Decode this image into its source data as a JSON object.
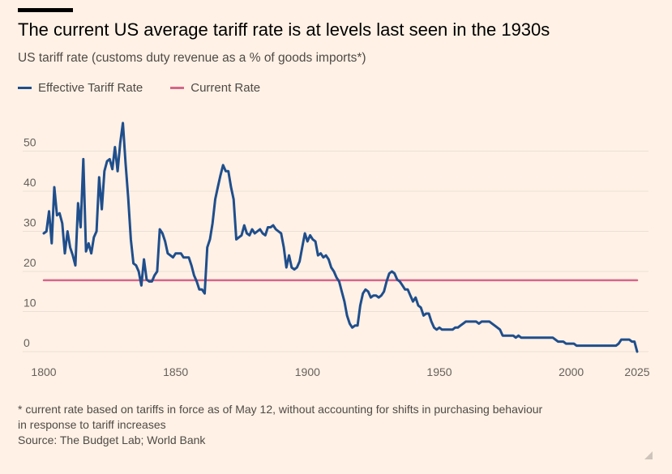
{
  "title": "The current US average tariff rate is at levels last seen in the 1930s",
  "subtitle": "US tariff rate (customs duty revenue as a % of goods imports*)",
  "legend": [
    {
      "label": "Effective Tariff Rate",
      "color": "#1f4e8c"
    },
    {
      "label": "Current Rate",
      "color": "#d6668a"
    }
  ],
  "footnote": {
    "line1": "* current rate based on tariffs in force as of May 12, without accounting for shifts in purchasing behaviour",
    "line2": "in response to tariff increases",
    "source": "Source: The Budget Lab; World Bank"
  },
  "chart_data": {
    "type": "line",
    "xlim": [
      1800,
      2025
    ],
    "ylim": [
      0,
      57
    ],
    "x_ticks": [
      1800,
      1850,
      1900,
      1950,
      2000,
      2025
    ],
    "y_ticks": [
      0,
      10,
      20,
      30,
      40,
      50
    ],
    "grid": true,
    "legend_position": "top-left",
    "series": [
      {
        "name": "Effective Tariff Rate",
        "color": "#1f4e8c",
        "points": [
          [
            1800,
            29.5
          ],
          [
            1801,
            30
          ],
          [
            1802,
            35
          ],
          [
            1803,
            27
          ],
          [
            1804,
            41
          ],
          [
            1805,
            34
          ],
          [
            1806,
            34.5
          ],
          [
            1807,
            32
          ],
          [
            1808,
            24.5
          ],
          [
            1809,
            30
          ],
          [
            1810,
            26
          ],
          [
            1811,
            24
          ],
          [
            1812,
            21.5
          ],
          [
            1813,
            37
          ],
          [
            1814,
            31
          ],
          [
            1815,
            48
          ],
          [
            1816,
            25
          ],
          [
            1817,
            27
          ],
          [
            1818,
            24.5
          ],
          [
            1819,
            28.5
          ],
          [
            1820,
            30
          ],
          [
            1821,
            43.5
          ],
          [
            1822,
            35.5
          ],
          [
            1823,
            45
          ],
          [
            1824,
            47.5
          ],
          [
            1825,
            48
          ],
          [
            1826,
            45.5
          ],
          [
            1827,
            51
          ],
          [
            1828,
            45
          ],
          [
            1829,
            52
          ],
          [
            1830,
            57
          ],
          [
            1831,
            47
          ],
          [
            1832,
            38.5
          ],
          [
            1833,
            28
          ],
          [
            1834,
            22
          ],
          [
            1835,
            21.5
          ],
          [
            1836,
            20
          ],
          [
            1837,
            16.5
          ],
          [
            1838,
            23
          ],
          [
            1839,
            18
          ],
          [
            1840,
            17.5
          ],
          [
            1841,
            17.5
          ],
          [
            1842,
            19
          ],
          [
            1843,
            20
          ],
          [
            1844,
            30.5
          ],
          [
            1845,
            29.5
          ],
          [
            1846,
            27.5
          ],
          [
            1847,
            24.5
          ],
          [
            1848,
            24
          ],
          [
            1849,
            23.5
          ],
          [
            1850,
            24.5
          ],
          [
            1851,
            24.5
          ],
          [
            1852,
            24.5
          ],
          [
            1853,
            23.5
          ],
          [
            1854,
            23.5
          ],
          [
            1855,
            23.5
          ],
          [
            1856,
            21.5
          ],
          [
            1857,
            19
          ],
          [
            1858,
            17.5
          ],
          [
            1859,
            15.5
          ],
          [
            1860,
            15.5
          ],
          [
            1861,
            14.5
          ],
          [
            1862,
            26
          ],
          [
            1863,
            28
          ],
          [
            1864,
            32
          ],
          [
            1865,
            38
          ],
          [
            1866,
            41
          ],
          [
            1867,
            44
          ],
          [
            1868,
            46.5
          ],
          [
            1869,
            45
          ],
          [
            1870,
            45
          ],
          [
            1871,
            41
          ],
          [
            1872,
            38
          ],
          [
            1873,
            28
          ],
          [
            1874,
            28.5
          ],
          [
            1875,
            29
          ],
          [
            1876,
            31.5
          ],
          [
            1877,
            29.5
          ],
          [
            1878,
            29
          ],
          [
            1879,
            30.5
          ],
          [
            1880,
            29.5
          ],
          [
            1881,
            30
          ],
          [
            1882,
            30.5
          ],
          [
            1883,
            29.5
          ],
          [
            1884,
            29
          ],
          [
            1885,
            31
          ],
          [
            1886,
            31
          ],
          [
            1887,
            31.5
          ],
          [
            1888,
            30.5
          ],
          [
            1889,
            30
          ],
          [
            1890,
            29.5
          ],
          [
            1891,
            26
          ],
          [
            1892,
            21
          ],
          [
            1893,
            24
          ],
          [
            1894,
            21
          ],
          [
            1895,
            20.5
          ],
          [
            1896,
            21
          ],
          [
            1897,
            22.5
          ],
          [
            1898,
            26
          ],
          [
            1899,
            29.5
          ],
          [
            1900,
            27.5
          ],
          [
            1901,
            29
          ],
          [
            1902,
            28
          ],
          [
            1903,
            27.5
          ],
          [
            1904,
            24
          ],
          [
            1905,
            24.5
          ],
          [
            1906,
            23.5
          ],
          [
            1907,
            24
          ],
          [
            1908,
            23
          ],
          [
            1909,
            21
          ],
          [
            1910,
            20
          ],
          [
            1911,
            18.5
          ],
          [
            1912,
            17.5
          ],
          [
            1913,
            15
          ],
          [
            1914,
            12.5
          ],
          [
            1915,
            9
          ],
          [
            1916,
            7
          ],
          [
            1917,
            6
          ],
          [
            1918,
            6.5
          ],
          [
            1919,
            6.5
          ],
          [
            1920,
            11.5
          ],
          [
            1921,
            14.5
          ],
          [
            1922,
            15.5
          ],
          [
            1923,
            15
          ],
          [
            1924,
            13.5
          ],
          [
            1925,
            14
          ],
          [
            1926,
            14
          ],
          [
            1927,
            13.5
          ],
          [
            1928,
            14
          ],
          [
            1929,
            15
          ],
          [
            1930,
            17.5
          ],
          [
            1931,
            19.5
          ],
          [
            1932,
            20
          ],
          [
            1933,
            19.5
          ],
          [
            1934,
            18
          ],
          [
            1935,
            17.5
          ],
          [
            1936,
            16.5
          ],
          [
            1937,
            15.5
          ],
          [
            1938,
            15.5
          ],
          [
            1939,
            14
          ],
          [
            1940,
            12.5
          ],
          [
            1941,
            13.5
          ],
          [
            1942,
            11.5
          ],
          [
            1943,
            11
          ],
          [
            1944,
            9
          ],
          [
            1945,
            9.5
          ],
          [
            1946,
            9.5
          ],
          [
            1947,
            7.5
          ],
          [
            1948,
            6
          ],
          [
            1949,
            5.5
          ],
          [
            1950,
            6
          ],
          [
            1951,
            5.5
          ],
          [
            1952,
            5.5
          ],
          [
            1953,
            5.5
          ],
          [
            1954,
            5.5
          ],
          [
            1955,
            5.5
          ],
          [
            1956,
            6
          ],
          [
            1957,
            6
          ],
          [
            1958,
            6.5
          ],
          [
            1959,
            7
          ],
          [
            1960,
            7.5
          ],
          [
            1961,
            7.5
          ],
          [
            1962,
            7.5
          ],
          [
            1963,
            7.5
          ],
          [
            1964,
            7.5
          ],
          [
            1965,
            7
          ],
          [
            1966,
            7.5
          ],
          [
            1967,
            7.5
          ],
          [
            1968,
            7.5
          ],
          [
            1969,
            7.5
          ],
          [
            1970,
            7
          ],
          [
            1971,
            6.5
          ],
          [
            1972,
            6
          ],
          [
            1973,
            5.5
          ],
          [
            1974,
            4
          ],
          [
            1975,
            4
          ],
          [
            1976,
            4
          ],
          [
            1977,
            4
          ],
          [
            1978,
            4
          ],
          [
            1979,
            3.5
          ],
          [
            1980,
            4
          ],
          [
            1981,
            3.5
          ],
          [
            1982,
            3.5
          ],
          [
            1983,
            3.5
          ],
          [
            1984,
            3.5
          ],
          [
            1985,
            3.5
          ],
          [
            1986,
            3.5
          ],
          [
            1987,
            3.5
          ],
          [
            1988,
            3.5
          ],
          [
            1989,
            3.5
          ],
          [
            1990,
            3.5
          ],
          [
            1991,
            3.5
          ],
          [
            1992,
            3.5
          ],
          [
            1993,
            3.5
          ],
          [
            1994,
            3
          ],
          [
            1995,
            2.5
          ],
          [
            1996,
            2.5
          ],
          [
            1997,
            2.5
          ],
          [
            1998,
            2
          ],
          [
            1999,
            2
          ],
          [
            2000,
            2
          ],
          [
            2001,
            2
          ],
          [
            2002,
            1.5
          ],
          [
            2003,
            1.5
          ],
          [
            2004,
            1.5
          ],
          [
            2005,
            1.5
          ],
          [
            2006,
            1.5
          ],
          [
            2007,
            1.5
          ],
          [
            2008,
            1.5
          ],
          [
            2009,
            1.5
          ],
          [
            2010,
            1.5
          ],
          [
            2011,
            1.5
          ],
          [
            2012,
            1.5
          ],
          [
            2013,
            1.5
          ],
          [
            2014,
            1.5
          ],
          [
            2015,
            1.5
          ],
          [
            2016,
            1.5
          ],
          [
            2017,
            1.5
          ],
          [
            2018,
            2
          ],
          [
            2019,
            3
          ],
          [
            2020,
            3
          ],
          [
            2021,
            3
          ],
          [
            2022,
            3
          ],
          [
            2023,
            2.5
          ],
          [
            2024,
            2.5
          ],
          [
            2025,
            0
          ]
        ]
      },
      {
        "name": "Current Rate",
        "color": "#d6668a",
        "points": [
          [
            1800,
            17.8
          ],
          [
            2025,
            17.8
          ]
        ]
      }
    ]
  }
}
